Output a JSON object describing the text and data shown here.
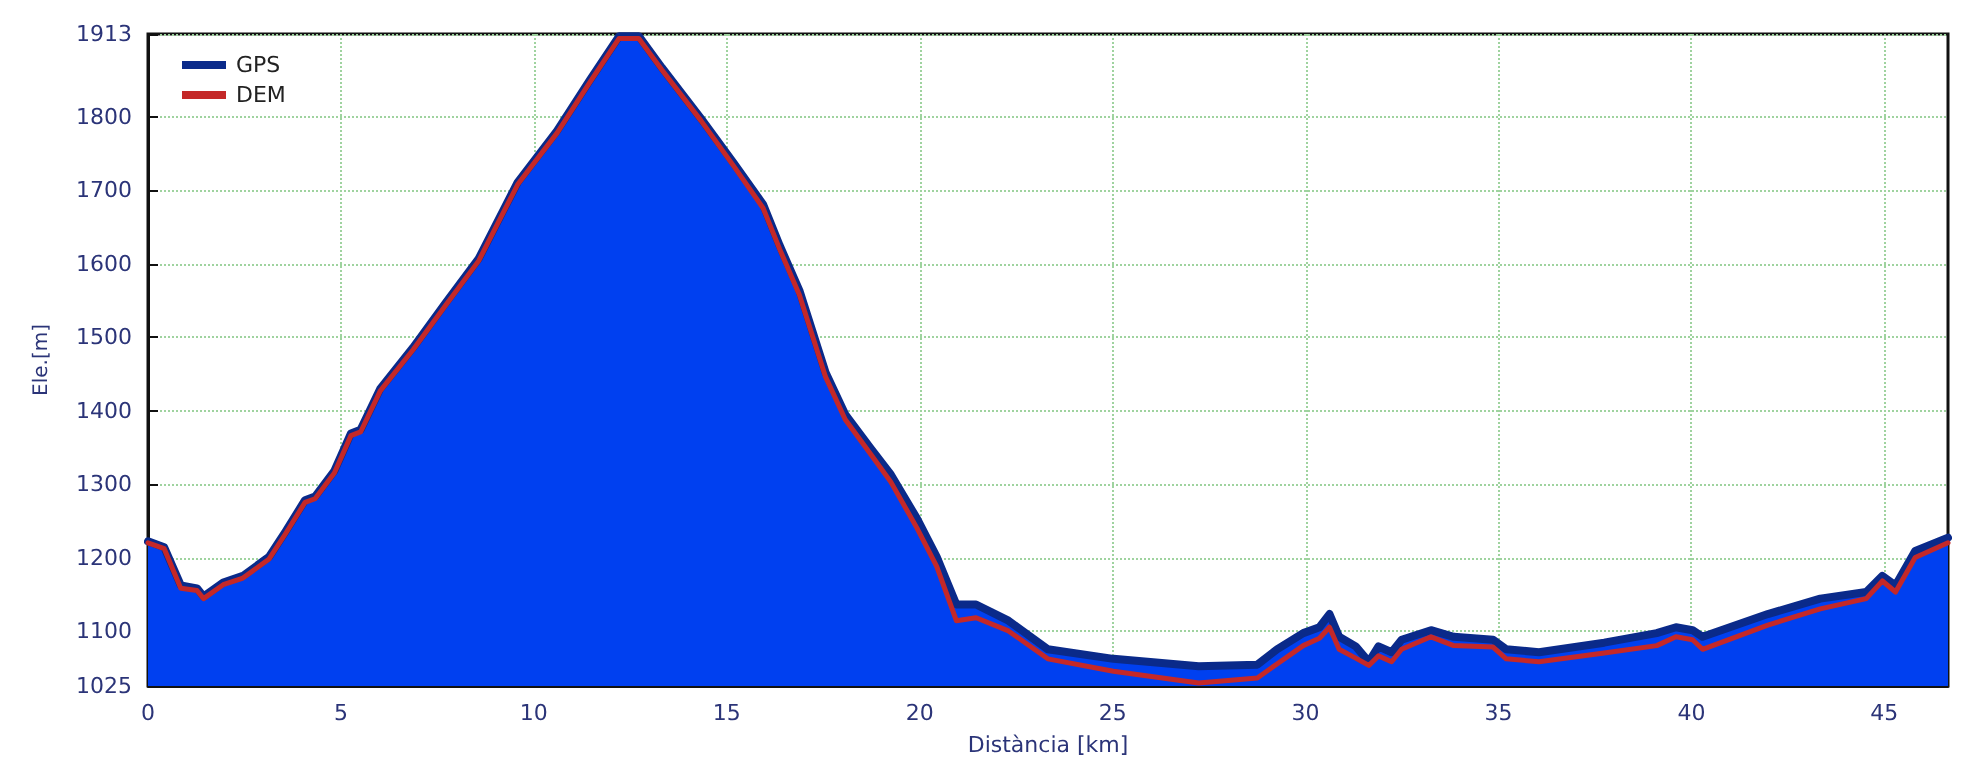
{
  "chart_data": {
    "type": "line",
    "xlabel": "Distància [km]",
    "ylabel": "Ele.[m]",
    "x": [
      0,
      0.42,
      0.85,
      1.27,
      1.44,
      1.95,
      2.46,
      3.14,
      3.56,
      4.07,
      4.33,
      4.83,
      5.26,
      5.51,
      6.02,
      6.87,
      7.72,
      8.57,
      9.58,
      10.6,
      11.45,
      12.21,
      12.72,
      13.32,
      14.33,
      15.18,
      15.94,
      16.37,
      16.88,
      17.56,
      18.07,
      18.74,
      19.25,
      19.93,
      20.44,
      20.95,
      21.46,
      22.3,
      23.32,
      25.02,
      27.23,
      28.75,
      29.26,
      29.94,
      30.36,
      30.62,
      30.87,
      31.3,
      31.64,
      31.89,
      32.23,
      32.49,
      33.25,
      33.84,
      34.86,
      35.2,
      36.05,
      37.74,
      39.1,
      39.6,
      40.03,
      40.29,
      41.98,
      43.34,
      44.53,
      44.95,
      45.29,
      45.8,
      46.65
    ],
    "series": [
      {
        "name": "GPS",
        "type": "area",
        "color": "#0a2a8a",
        "values": [
          1222,
          1214,
          1162,
          1158,
          1147,
          1166,
          1175,
          1201,
          1235,
          1278,
          1283,
          1318,
          1369,
          1374,
          1430,
          1486,
          1547,
          1607,
          1711,
          1781,
          1850,
          1910,
          1910,
          1867,
          1798,
          1737,
          1681,
          1625,
          1564,
          1452,
          1395,
          1348,
          1313,
          1253,
          1201,
          1136,
          1136,
          1114,
          1075,
          1062,
          1052,
          1054,
          1075,
          1097,
          1105,
          1123,
          1092,
          1079,
          1058,
          1079,
          1071,
          1088,
          1101,
          1092,
          1088,
          1075,
          1071,
          1084,
          1097,
          1105,
          1101,
          1092,
          1123,
          1144,
          1153,
          1175,
          1162,
          1209,
          1227
        ]
      },
      {
        "name": "DEM",
        "color": "#c42828",
        "values": [
          1220,
          1212,
          1158,
          1155,
          1144,
          1163,
          1172,
          1198,
          1232,
          1275,
          1280,
          1315,
          1366,
          1371,
          1427,
          1483,
          1544,
          1604,
          1708,
          1778,
          1847,
          1907,
          1907,
          1864,
          1795,
          1733,
          1676,
          1620,
          1558,
          1446,
          1388,
          1340,
          1303,
          1240,
          1188,
          1114,
          1118,
          1100,
          1062,
          1045,
          1029,
          1036,
          1055,
          1080,
          1090,
          1105,
          1075,
          1063,
          1053,
          1066,
          1058,
          1075,
          1092,
          1080,
          1078,
          1062,
          1058,
          1070,
          1080,
          1092,
          1088,
          1075,
          1108,
          1130,
          1144,
          1168,
          1153,
          1200,
          1220
        ]
      }
    ],
    "xlim": [
      0,
      46.65
    ],
    "xticks": [
      0,
      5,
      10,
      15,
      20,
      25,
      30,
      35,
      40,
      45
    ],
    "ylim": [
      1025,
      1913
    ],
    "yticks": [
      1025,
      1100,
      1200,
      1300,
      1400,
      1500,
      1600,
      1700,
      1800,
      1913
    ],
    "grid": true,
    "legend": "top left",
    "marker": "none",
    "line_style": "solid"
  }
}
